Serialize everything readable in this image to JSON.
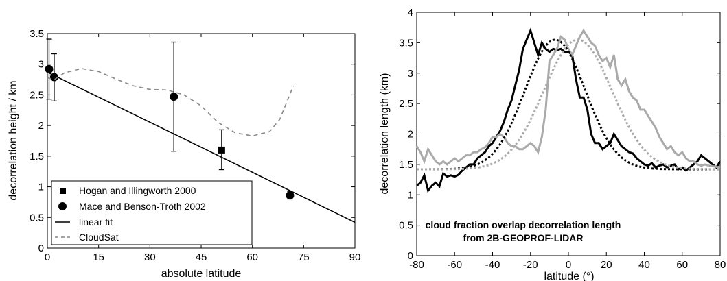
{
  "chart_data": [
    {
      "type": "scatter",
      "title": "",
      "xlabel": "absolute latitude",
      "ylabel": "decorrelation height / km",
      "xlim": [
        0,
        90
      ],
      "ylim": [
        0,
        3.5
      ],
      "xticks": [
        0,
        15,
        30,
        45,
        60,
        75,
        90
      ],
      "yticks": [
        0,
        0.5,
        1,
        1.5,
        2,
        2.5,
        3,
        3.5
      ],
      "grid": false,
      "legend_position": "bottom-left",
      "legend": [
        "Hogan and Illingworth 2000",
        "Mace and Benson-Troth 2002",
        "linear fit",
        "CloudSat"
      ],
      "series": [
        {
          "name": "Hogan and Illingworth 2000",
          "marker": "square",
          "points": [
            {
              "x": 51,
              "y": 1.6,
              "err_low": 1.28,
              "err_high": 1.93
            }
          ]
        },
        {
          "name": "Mace and Benson-Troth 2002",
          "marker": "circle",
          "points": [
            {
              "x": 0.5,
              "y": 2.92,
              "err_low": 2.43,
              "err_high": 3.41
            },
            {
              "x": 2,
              "y": 2.79,
              "err_low": 2.4,
              "err_high": 3.17
            },
            {
              "x": 37,
              "y": 2.47,
              "err_low": 1.58,
              "err_high": 3.36
            },
            {
              "x": 71,
              "y": 0.86,
              "err_low": 0.8,
              "err_high": 0.92
            }
          ]
        },
        {
          "name": "linear fit",
          "style": "solid",
          "x": [
            0,
            90
          ],
          "y": [
            2.87,
            0.42
          ]
        },
        {
          "name": "CloudSat",
          "style": "dashed",
          "color": "#888888",
          "x": [
            0,
            2,
            5,
            10,
            15,
            20,
            25,
            30,
            35,
            40,
            45,
            50,
            55,
            60,
            65,
            68,
            72
          ],
          "y": [
            2.78,
            2.75,
            2.86,
            2.93,
            2.88,
            2.76,
            2.65,
            2.59,
            2.58,
            2.5,
            2.32,
            2.05,
            1.88,
            1.83,
            1.9,
            2.1,
            2.65
          ]
        }
      ]
    },
    {
      "type": "line",
      "title": "",
      "annotation": [
        "cloud fraction overlap decorrelation length",
        "from 2B-GEOPROF-LIDAR"
      ],
      "xlabel": "latitude (°)",
      "ylabel": "decorrelation length (km)",
      "xlim": [
        -80,
        80
      ],
      "ylim": [
        0,
        4
      ],
      "xticks": [
        -80,
        -60,
        -40,
        -20,
        0,
        20,
        40,
        60,
        80
      ],
      "yticks": [
        0,
        0.5,
        1,
        1.5,
        2,
        2.5,
        3,
        3.5,
        4
      ],
      "grid": false,
      "series": [
        {
          "style": "solid",
          "color": "#000000",
          "x": [
            -80,
            -78,
            -76,
            -74,
            -72,
            -70,
            -68,
            -66,
            -64,
            -62,
            -60,
            -58,
            -56,
            -54,
            -52,
            -50,
            -48,
            -46,
            -44,
            -42,
            -40,
            -38,
            -36,
            -34,
            -32,
            -30,
            -28,
            -26,
            -24,
            -22,
            -20,
            -18,
            -16,
            -14,
            -12,
            -10,
            -8,
            -6,
            -4,
            -2,
            0,
            2,
            4,
            6,
            8,
            10,
            12,
            14,
            16,
            18,
            20,
            22,
            24,
            26,
            28,
            30,
            32,
            34,
            36,
            38,
            40,
            42,
            44,
            46,
            48,
            50,
            52,
            54,
            56,
            58,
            60,
            62,
            64,
            66,
            68,
            70,
            72,
            74,
            76,
            78,
            80
          ],
          "y": [
            1.15,
            1.2,
            1.32,
            1.07,
            1.15,
            1.2,
            1.14,
            1.35,
            1.3,
            1.32,
            1.3,
            1.33,
            1.4,
            1.45,
            1.5,
            1.5,
            1.6,
            1.65,
            1.7,
            1.8,
            1.85,
            1.95,
            2.05,
            2.2,
            2.4,
            2.55,
            2.8,
            3.05,
            3.4,
            3.55,
            3.7,
            3.5,
            3.3,
            3.5,
            3.4,
            3.35,
            3.4,
            3.38,
            3.4,
            3.35,
            3.35,
            3.3,
            2.9,
            2.6,
            2.6,
            2.4,
            2.0,
            1.85,
            1.85,
            1.75,
            1.8,
            1.85,
            2.0,
            1.9,
            1.8,
            1.75,
            1.7,
            1.68,
            1.6,
            1.55,
            1.5,
            1.48,
            1.52,
            1.45,
            1.48,
            1.5,
            1.45,
            1.48,
            1.5,
            1.42,
            1.45,
            1.4,
            1.45,
            1.5,
            1.55,
            1.65,
            1.6,
            1.55,
            1.5,
            1.45,
            1.55
          ]
        },
        {
          "style": "solid",
          "color": "#aaaaaa",
          "x": [
            -80,
            -78,
            -76,
            -74,
            -72,
            -70,
            -68,
            -66,
            -64,
            -62,
            -60,
            -58,
            -56,
            -54,
            -52,
            -50,
            -48,
            -46,
            -44,
            -42,
            -40,
            -38,
            -36,
            -34,
            -32,
            -30,
            -28,
            -26,
            -24,
            -22,
            -20,
            -18,
            -16,
            -14,
            -12,
            -10,
            -8,
            -6,
            -4,
            -2,
            0,
            2,
            4,
            6,
            8,
            10,
            12,
            14,
            16,
            18,
            20,
            22,
            24,
            26,
            28,
            30,
            32,
            34,
            36,
            38,
            40,
            42,
            44,
            46,
            48,
            50,
            52,
            54,
            56,
            58,
            60,
            62,
            64,
            66,
            68,
            70,
            72,
            74,
            76,
            78,
            80
          ],
          "y": [
            1.8,
            1.7,
            1.55,
            1.75,
            1.65,
            1.55,
            1.5,
            1.55,
            1.5,
            1.55,
            1.6,
            1.55,
            1.6,
            1.65,
            1.65,
            1.7,
            1.7,
            1.75,
            1.78,
            1.85,
            1.95,
            1.95,
            2.0,
            1.95,
            1.85,
            1.8,
            1.8,
            1.75,
            1.75,
            1.8,
            1.85,
            1.8,
            1.7,
            1.95,
            2.4,
            3.2,
            3.3,
            3.4,
            3.6,
            3.55,
            3.4,
            3.3,
            3.45,
            3.6,
            3.7,
            3.6,
            3.5,
            3.45,
            3.3,
            3.2,
            3.25,
            3.1,
            3.3,
            2.9,
            2.8,
            2.9,
            2.7,
            2.6,
            2.55,
            2.4,
            2.4,
            2.3,
            2.2,
            2.1,
            1.95,
            1.85,
            1.75,
            1.8,
            1.7,
            1.65,
            1.7,
            1.6,
            1.55,
            1.55,
            1.5,
            1.48,
            1.5,
            1.48,
            1.47,
            1.46,
            1.45
          ]
        },
        {
          "style": "dotted",
          "color": "#000000",
          "gauss": {
            "base": 1.42,
            "amp": 2.13,
            "center": -7,
            "sigma": 16
          }
        },
        {
          "style": "dotted",
          "color": "#aaaaaa",
          "gauss": {
            "base": 1.42,
            "amp": 2.13,
            "center": 5,
            "sigma": 18
          }
        }
      ]
    }
  ]
}
